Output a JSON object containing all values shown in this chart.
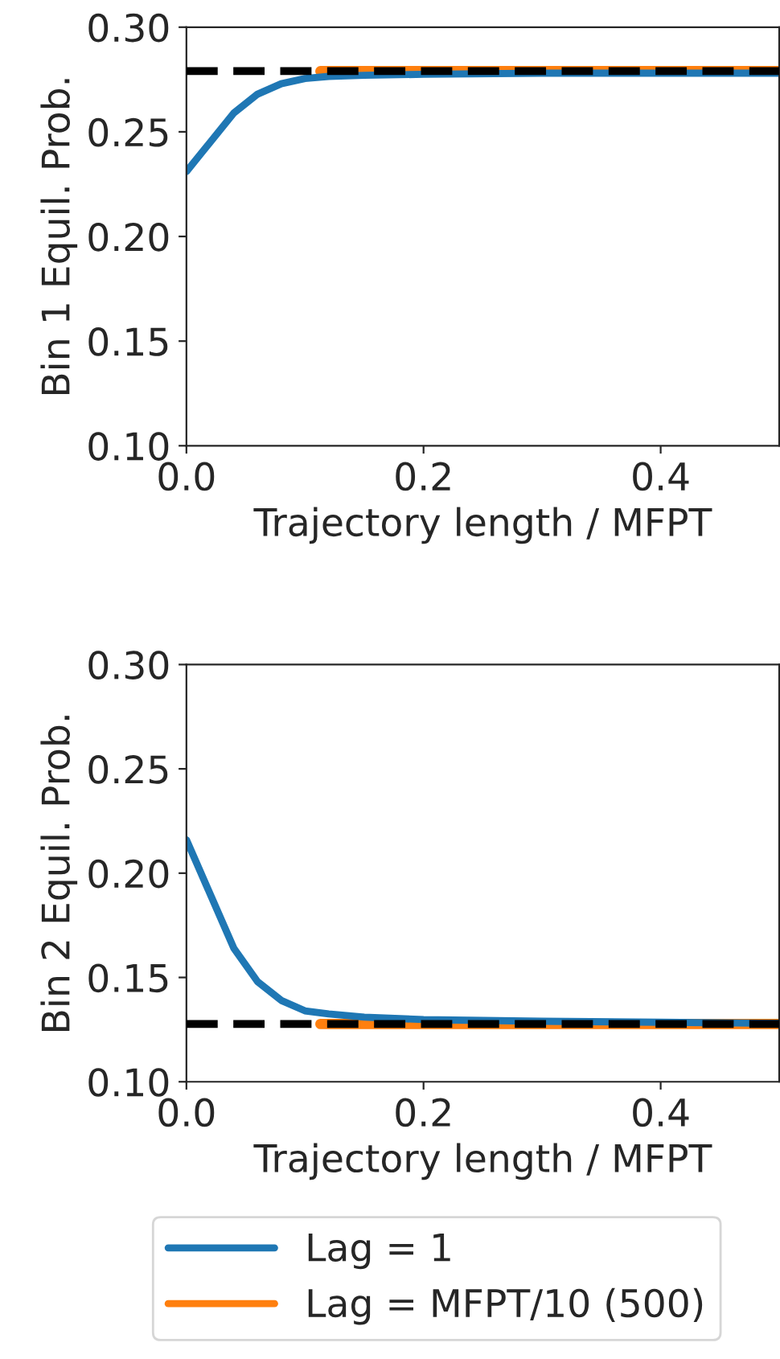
{
  "chart_data": [
    {
      "type": "line",
      "xlabel": "Trajectory length / MFPT",
      "ylabel": "Bin 1 Equil. Prob.",
      "xlim": [
        0,
        0.5
      ],
      "ylim": [
        0.1,
        0.3
      ],
      "xticks": [
        {
          "value": 0,
          "label": "0.0"
        },
        {
          "value": 0.2,
          "label": "0.2"
        },
        {
          "value": 0.4,
          "label": "0.4"
        }
      ],
      "yticks": [
        {
          "value": 0.1,
          "label": "0.10"
        },
        {
          "value": 0.15,
          "label": "0.15"
        },
        {
          "value": 0.2,
          "label": "0.20"
        },
        {
          "value": 0.25,
          "label": "0.25"
        },
        {
          "value": 0.3,
          "label": "0.30"
        }
      ],
      "series": [
        {
          "color": "#ff7f0e",
          "x": [
            0.113,
            0.2,
            0.3,
            0.4,
            0.5
          ],
          "values": [
            0.279,
            0.279,
            0.279,
            0.279,
            0.279
          ]
        },
        {
          "color": "#1f77b4",
          "x": [
            0,
            0.02,
            0.04,
            0.06,
            0.08,
            0.1,
            0.12,
            0.15,
            0.2,
            0.3,
            0.4,
            0.5
          ],
          "values": [
            0.231,
            0.245,
            0.259,
            0.268,
            0.273,
            0.2755,
            0.2765,
            0.277,
            0.2775,
            0.278,
            0.278,
            0.278
          ]
        }
      ],
      "ref_lines": [
        {
          "axis": "y",
          "value": 0.279,
          "color": "#000000",
          "line_style": "dashed"
        }
      ]
    },
    {
      "type": "line",
      "xlabel": "Trajectory length / MFPT",
      "ylabel": "Bin 2 Equil. Prob.",
      "xlim": [
        0,
        0.5
      ],
      "ylim": [
        0.1,
        0.3
      ],
      "xticks": [
        {
          "value": 0,
          "label": "0.0"
        },
        {
          "value": 0.2,
          "label": "0.2"
        },
        {
          "value": 0.4,
          "label": "0.4"
        }
      ],
      "yticks": [
        {
          "value": 0.1,
          "label": "0.10"
        },
        {
          "value": 0.15,
          "label": "0.15"
        },
        {
          "value": 0.2,
          "label": "0.20"
        },
        {
          "value": 0.25,
          "label": "0.25"
        },
        {
          "value": 0.3,
          "label": "0.30"
        }
      ],
      "legend": "bottom",
      "series": [
        {
          "name": "Lag = MFPT/10 (500)",
          "color": "#ff7f0e",
          "x": [
            0.113,
            0.2,
            0.3,
            0.4,
            0.5
          ],
          "values": [
            0.1277,
            0.1277,
            0.1277,
            0.1277,
            0.1277
          ]
        },
        {
          "name": "Lag = 1",
          "color": "#1f77b4",
          "x": [
            0,
            0.02,
            0.04,
            0.06,
            0.08,
            0.1,
            0.12,
            0.15,
            0.2,
            0.3,
            0.4,
            0.5
          ],
          "values": [
            0.216,
            0.19,
            0.164,
            0.148,
            0.139,
            0.134,
            0.1325,
            0.131,
            0.1298,
            0.129,
            0.1285,
            0.128
          ]
        }
      ],
      "ref_lines": [
        {
          "axis": "y",
          "value": 0.1277,
          "color": "#000000",
          "line_style": "dashed"
        }
      ]
    }
  ]
}
